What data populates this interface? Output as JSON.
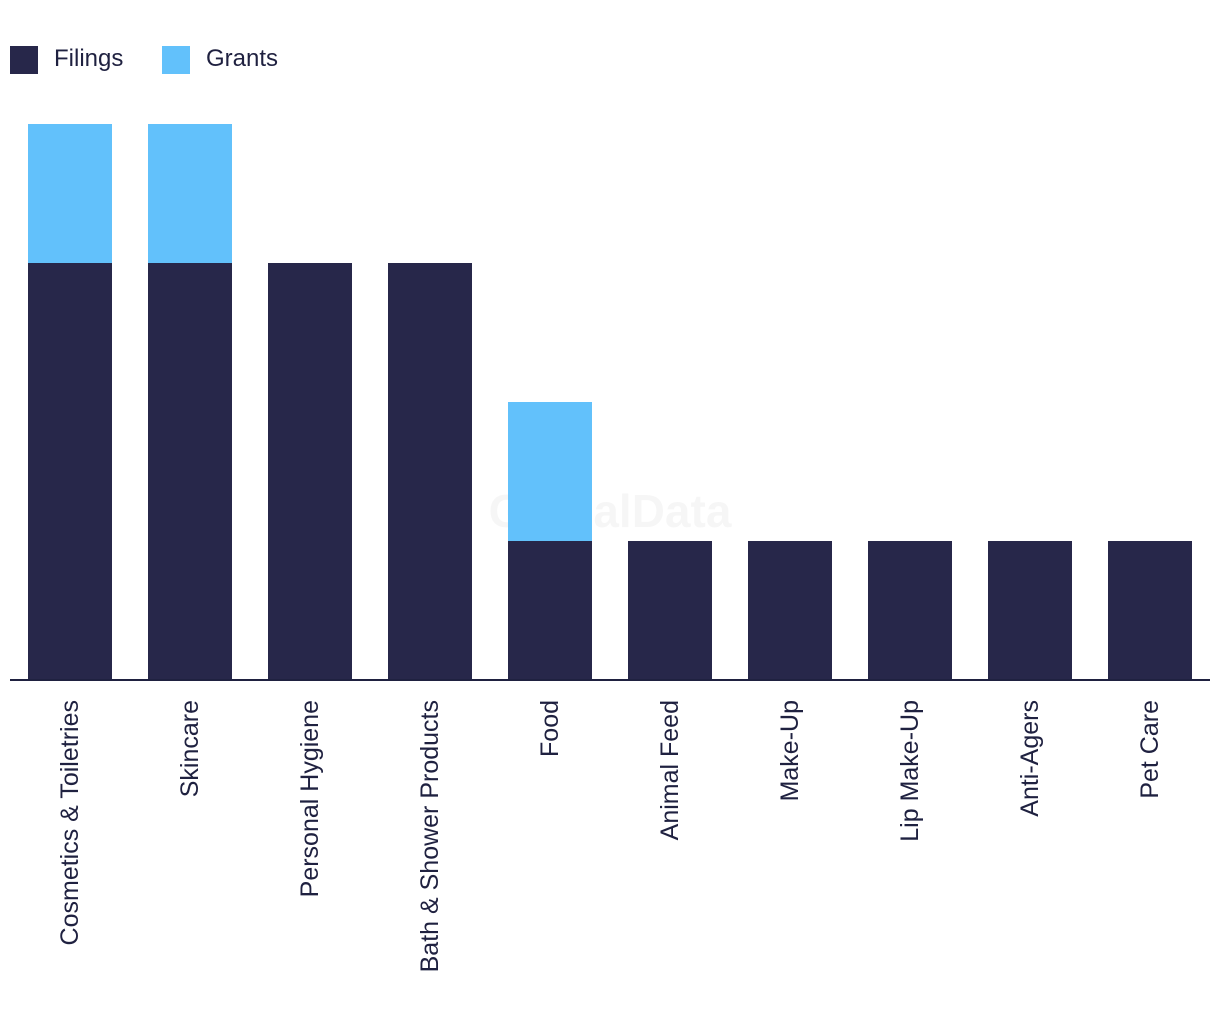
{
  "chart_data": {
    "type": "bar",
    "stacked": true,
    "categories": [
      "Cosmetics & Toiletries",
      "Skincare",
      "Personal Hygiene",
      "Bath & Shower Products",
      "Food",
      "Animal Feed",
      "Make-Up",
      "Lip Make-Up",
      "Anti-Agers",
      "Pet Care"
    ],
    "series": [
      {
        "name": "Filings",
        "color": "#27274a",
        "values": [
          3,
          3,
          3,
          3,
          1,
          1,
          1,
          1,
          1,
          1
        ]
      },
      {
        "name": "Grants",
        "color": "#62c1fb",
        "values": [
          1,
          1,
          0,
          0,
          1,
          0,
          0,
          0,
          0,
          0
        ]
      }
    ],
    "ylim": [
      0,
      4
    ],
    "grid": false,
    "legend_position": "top-left",
    "watermark": "GlobalData"
  }
}
